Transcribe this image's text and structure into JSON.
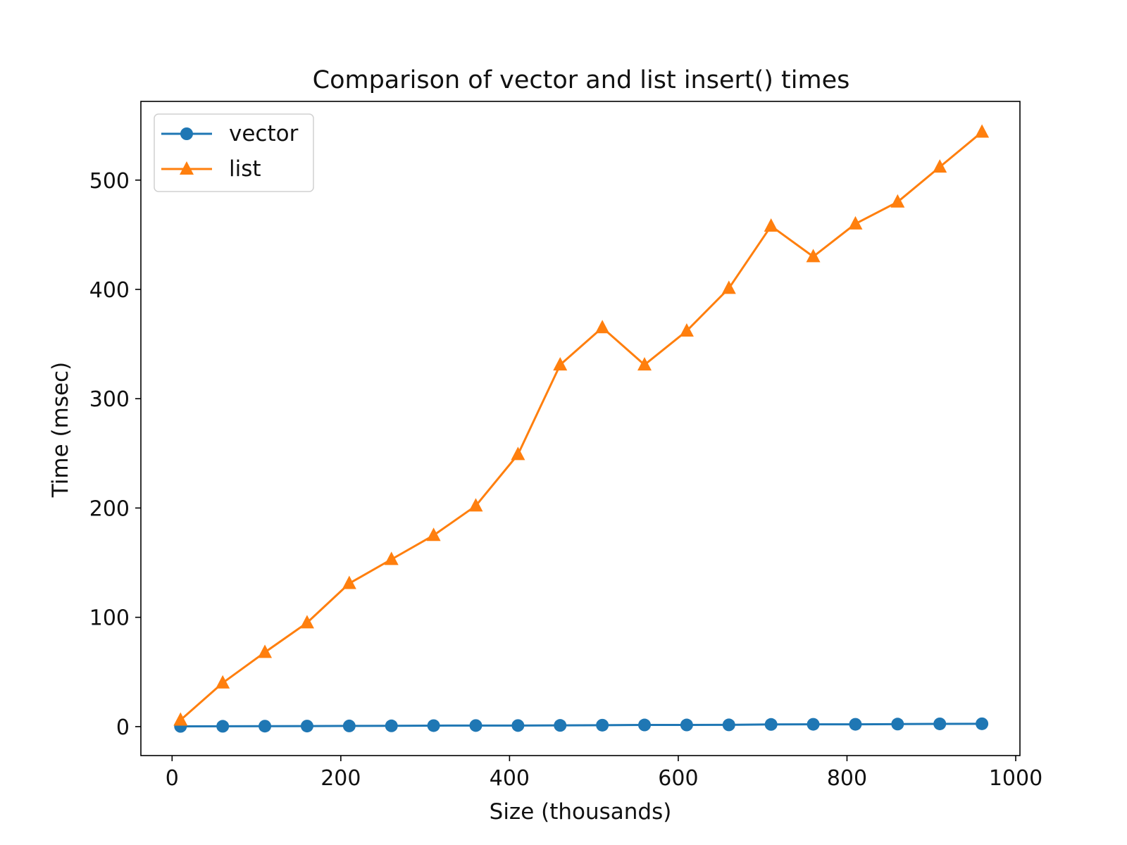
{
  "chart_data": {
    "type": "line",
    "title": "Comparison of vector and list insert() times",
    "xlabel": "Size (thousands)",
    "ylabel": "Time (msec)",
    "x": [
      10,
      60,
      110,
      160,
      210,
      260,
      310,
      360,
      410,
      460,
      510,
      560,
      610,
      660,
      710,
      760,
      810,
      860,
      910,
      960
    ],
    "series": [
      {
        "name": "vector",
        "color": "#1f77b4",
        "marker": "circle",
        "values": [
          0.2,
          0.3,
          0.4,
          0.5,
          0.6,
          0.7,
          0.9,
          1.0,
          1.0,
          1.1,
          1.3,
          1.5,
          1.5,
          1.6,
          2.0,
          2.1,
          2.1,
          2.3,
          2.5,
          2.6
        ]
      },
      {
        "name": "list",
        "color": "#ff7f0e",
        "marker": "triangle",
        "values": [
          6,
          40,
          68,
          95,
          131,
          153,
          175,
          202,
          249,
          331,
          365,
          331,
          362,
          401,
          458,
          430,
          460,
          480,
          512,
          544
        ]
      }
    ],
    "xlim": [
      -37,
      1005
    ],
    "ylim": [
      -26.5,
      572
    ],
    "xticks": [
      0,
      200,
      400,
      600,
      800,
      1000
    ],
    "yticks": [
      0,
      100,
      200,
      300,
      400,
      500
    ],
    "grid": false,
    "legend": "top-left"
  }
}
